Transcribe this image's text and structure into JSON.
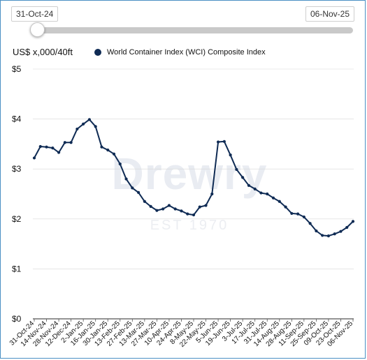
{
  "range_slider": {
    "start_label": "31-Oct-24",
    "end_label": "06-Nov-25"
  },
  "unit_label": "US$ x,000/40ft",
  "colors": {
    "series": "#0f2b54",
    "axis": "#555555",
    "grid": "#d8d8d8"
  },
  "watermark": {
    "brand": "Drewry",
    "est": "EST 1970"
  },
  "chart_data": {
    "type": "line",
    "title": "",
    "ylabel": "US$ x,000/40ft",
    "xlabel": "",
    "ylim": [
      0,
      5
    ],
    "yticks": [
      "$0",
      "$1",
      "$2",
      "$3",
      "$4",
      "$5"
    ],
    "grid": true,
    "legend_position": "top",
    "x_tick_labels": [
      "31-Oct-24",
      "14-Nov-24",
      "28-Nov-24",
      "12-Dec-24",
      "2-Jan-25",
      "16-Jan-25",
      "30-Jan-25",
      "13-Feb-25",
      "27-Feb-25",
      "13-Mar-25",
      "27-Mar-25",
      "10-Apr-25",
      "24-Apr-25",
      "8-May-25",
      "22-May-25",
      "5-Jun-25",
      "19-Jun-25",
      "3-Jul-25",
      "17-Jul-25",
      "31-Jul-25",
      "14-Aug-25",
      "28-Aug-25",
      "11-Sep-25",
      "25-Sep-25",
      "09-Oct-25",
      "23-Oct-25",
      "06-Nov-25"
    ],
    "series": [
      {
        "name": "World Container Index (WCI) Composite Index",
        "values": [
          3.22,
          3.45,
          3.44,
          3.42,
          3.33,
          3.53,
          3.53,
          3.8,
          3.9,
          3.99,
          3.85,
          3.44,
          3.38,
          3.3,
          3.1,
          2.8,
          2.62,
          2.53,
          2.35,
          2.25,
          2.17,
          2.2,
          2.27,
          2.2,
          2.16,
          2.1,
          2.08,
          2.24,
          2.27,
          2.5,
          3.54,
          3.55,
          3.28,
          2.99,
          2.83,
          2.67,
          2.6,
          2.52,
          2.5,
          2.42,
          2.35,
          2.24,
          2.11,
          2.1,
          2.04,
          1.91,
          1.76,
          1.67,
          1.66,
          1.7,
          1.75,
          1.83,
          1.95
        ]
      }
    ]
  }
}
